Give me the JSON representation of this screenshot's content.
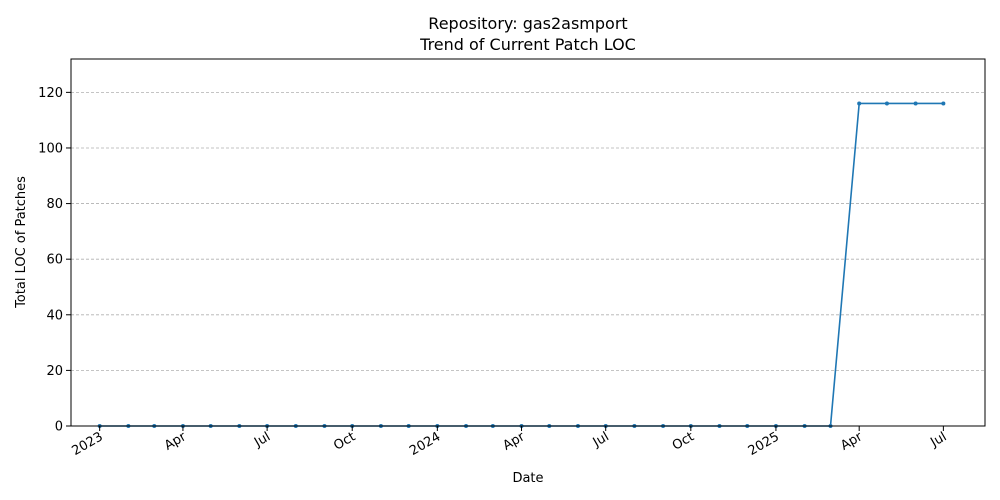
{
  "chart_data": {
    "type": "line",
    "title": "Repository: gas2asmport",
    "subtitle": "Trend of Current Patch LOC",
    "xlabel": "Date",
    "ylabel": "Total LOC of Patches",
    "ylim": [
      0,
      132
    ],
    "xlim": [
      "2022-12-01",
      "2025-08-15"
    ],
    "grid": "y-dashed",
    "line_color": "#1f77b4",
    "y_ticks": [
      0,
      20,
      40,
      60,
      80,
      100,
      120
    ],
    "x_ticks": [
      {
        "date": "2023-01-01",
        "label": "2023"
      },
      {
        "date": "2023-04-01",
        "label": "Apr"
      },
      {
        "date": "2023-07-01",
        "label": "Jul"
      },
      {
        "date": "2023-10-01",
        "label": "Oct"
      },
      {
        "date": "2024-01-01",
        "label": "2024"
      },
      {
        "date": "2024-04-01",
        "label": "Apr"
      },
      {
        "date": "2024-07-01",
        "label": "Jul"
      },
      {
        "date": "2024-10-01",
        "label": "Oct"
      },
      {
        "date": "2025-01-01",
        "label": "2025"
      },
      {
        "date": "2025-04-01",
        "label": "Apr"
      },
      {
        "date": "2025-07-01",
        "label": "Jul"
      }
    ],
    "series": [
      {
        "x": [
          "2023-01-01",
          "2023-02-01",
          "2023-03-01",
          "2023-04-01",
          "2023-05-01",
          "2023-06-01",
          "2023-07-01",
          "2023-08-01",
          "2023-09-01",
          "2023-10-01",
          "2023-11-01",
          "2023-12-01",
          "2024-01-01",
          "2024-02-01",
          "2024-03-01",
          "2024-04-01",
          "2024-05-01",
          "2024-06-01",
          "2024-07-01",
          "2024-08-01",
          "2024-09-01",
          "2024-10-01",
          "2024-11-01",
          "2024-12-01",
          "2025-01-01",
          "2025-02-01",
          "2025-03-01",
          "2025-04-01",
          "2025-05-01",
          "2025-06-01",
          "2025-07-01"
        ],
        "values": [
          0,
          0,
          0,
          0,
          0,
          0,
          0,
          0,
          0,
          0,
          0,
          0,
          0,
          0,
          0,
          0,
          0,
          0,
          0,
          0,
          0,
          0,
          0,
          0,
          0,
          0,
          0,
          116,
          116,
          116,
          116
        ]
      }
    ]
  }
}
